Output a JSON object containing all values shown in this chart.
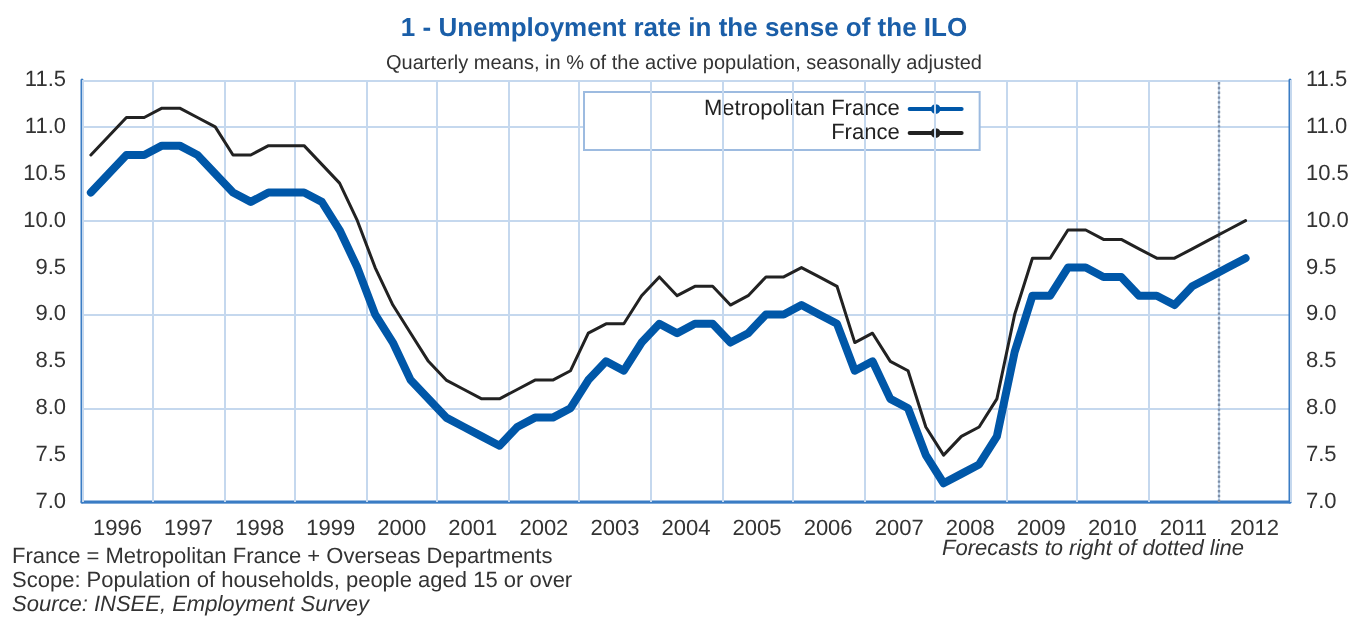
{
  "chart_data": {
    "type": "line",
    "title": "1 - Unemployment rate in the sense of the ILO",
    "subtitle": "Quarterly means, in % of the active population, seasonally adjusted",
    "x": [
      1996.125,
      1996.375,
      1996.625,
      1996.875,
      1997.125,
      1997.375,
      1997.625,
      1997.875,
      1998.125,
      1998.375,
      1998.625,
      1998.875,
      1999.125,
      1999.375,
      1999.625,
      1999.875,
      2000.125,
      2000.375,
      2000.625,
      2000.875,
      2001.125,
      2001.375,
      2001.625,
      2001.875,
      2002.125,
      2002.375,
      2002.625,
      2002.875,
      2003.125,
      2003.375,
      2003.625,
      2003.875,
      2004.125,
      2004.375,
      2004.625,
      2004.875,
      2005.125,
      2005.375,
      2005.625,
      2005.875,
      2006.125,
      2006.375,
      2006.625,
      2006.875,
      2007.125,
      2007.375,
      2007.625,
      2007.875,
      2008.125,
      2008.375,
      2008.625,
      2008.875,
      2009.125,
      2009.375,
      2009.625,
      2009.875,
      2010.125,
      2010.375,
      2010.625,
      2010.875,
      2011.125,
      2011.375,
      2011.625,
      2011.875,
      2012.125,
      2012.375
    ],
    "series": [
      {
        "name": "Metropolitan France",
        "color": "#0057a8",
        "values": [
          10.3,
          10.5,
          10.7,
          10.7,
          10.8,
          10.8,
          10.7,
          10.5,
          10.3,
          10.2,
          10.3,
          10.3,
          10.3,
          10.2,
          9.9,
          9.5,
          9.0,
          8.7,
          8.3,
          8.1,
          7.9,
          7.8,
          7.7,
          7.6,
          7.8,
          7.9,
          7.9,
          8.0,
          8.3,
          8.5,
          8.4,
          8.7,
          8.9,
          8.8,
          8.9,
          8.9,
          8.7,
          8.8,
          9.0,
          9.0,
          9.1,
          9.0,
          8.9,
          8.4,
          8.5,
          8.1,
          8.0,
          7.5,
          7.2,
          7.3,
          7.4,
          7.7,
          8.6,
          9.2,
          9.2,
          9.5,
          9.5,
          9.4,
          9.4,
          9.2,
          9.2,
          9.1,
          9.3,
          9.4,
          9.5,
          9.6
        ]
      },
      {
        "name": "France",
        "color": "#222222",
        "values": [
          10.7,
          10.9,
          11.1,
          11.1,
          11.2,
          11.2,
          11.1,
          11.0,
          10.7,
          10.7,
          10.8,
          10.8,
          10.8,
          10.6,
          10.4,
          10.0,
          9.5,
          9.1,
          8.8,
          8.5,
          8.3,
          8.2,
          8.1,
          8.1,
          8.2,
          8.3,
          8.3,
          8.4,
          8.8,
          8.9,
          8.9,
          9.2,
          9.4,
          9.2,
          9.3,
          9.3,
          9.1,
          9.2,
          9.4,
          9.4,
          9.5,
          9.4,
          9.3,
          8.7,
          8.8,
          8.5,
          8.4,
          7.8,
          7.5,
          7.7,
          7.8,
          8.1,
          9.0,
          9.6,
          9.6,
          9.9,
          9.9,
          9.8,
          9.8,
          9.7,
          9.6,
          9.6,
          9.7,
          9.8,
          9.9,
          10.0
        ]
      }
    ],
    "xlim": [
      1996,
      2013
    ],
    "xticks": [
      {
        "value": 1996,
        "label": null
      },
      {
        "value": 1996.5,
        "label": "1996"
      },
      {
        "value": 1997,
        "label": null
      },
      {
        "value": 1997.5,
        "label": "1997"
      },
      {
        "value": 1998,
        "label": null
      },
      {
        "value": 1998.5,
        "label": "1998"
      },
      {
        "value": 1999,
        "label": null
      },
      {
        "value": 1999.5,
        "label": "1999"
      },
      {
        "value": 2000,
        "label": null
      },
      {
        "value": 2000.5,
        "label": "2000"
      },
      {
        "value": 2001,
        "label": null
      },
      {
        "value": 2001.5,
        "label": "2001"
      },
      {
        "value": 2002,
        "label": null
      },
      {
        "value": 2002.5,
        "label": "2002"
      },
      {
        "value": 2003,
        "label": null
      },
      {
        "value": 2003.5,
        "label": "2003"
      },
      {
        "value": 2004,
        "label": null
      },
      {
        "value": 2004.5,
        "label": "2004"
      },
      {
        "value": 2005,
        "label": null
      },
      {
        "value": 2005.5,
        "label": "2005"
      },
      {
        "value": 2006,
        "label": null
      },
      {
        "value": 2006.5,
        "label": "2006"
      },
      {
        "value": 2007,
        "label": null
      },
      {
        "value": 2007.5,
        "label": "2007"
      },
      {
        "value": 2008,
        "label": null
      },
      {
        "value": 2008.5,
        "label": "2008"
      },
      {
        "value": 2009,
        "label": null
      },
      {
        "value": 2009.5,
        "label": "2009"
      },
      {
        "value": 2010,
        "label": null
      },
      {
        "value": 2010.5,
        "label": "2010"
      },
      {
        "value": 2011,
        "label": null
      },
      {
        "value": 2011.5,
        "label": "2011"
      },
      {
        "value": 2012,
        "label": null
      },
      {
        "value": 2012.5,
        "label": "2012"
      },
      {
        "value": 2013,
        "label": null
      }
    ],
    "ylim": [
      7.0,
      11.5
    ],
    "yticks": [
      {
        "value": 7,
        "label": "7.0"
      },
      {
        "value": 7.5,
        "label": "7.5"
      },
      {
        "value": 8,
        "label": "8.0"
      },
      {
        "value": 8.5,
        "label": "8.5"
      },
      {
        "value": 9,
        "label": "9.0"
      },
      {
        "value": 9.5,
        "label": "9.5"
      },
      {
        "value": 10,
        "label": "10.0"
      },
      {
        "value": 10.5,
        "label": "10.5"
      },
      {
        "value": 11,
        "label": "11.0"
      },
      {
        "value": 11.5,
        "label": "11.5"
      }
    ],
    "y2lim": [
      7.0,
      11.5
    ],
    "y2ticks": [
      {
        "value": 7,
        "label": "7.0"
      },
      {
        "value": 7.5,
        "label": "7.5"
      },
      {
        "value": 8,
        "label": "8.0"
      },
      {
        "value": 8.5,
        "label": "8.5"
      },
      {
        "value": 9,
        "label": "9.0"
      },
      {
        "value": 9.5,
        "label": "9.5"
      },
      {
        "value": 10,
        "label": "10.0"
      },
      {
        "value": 10.5,
        "label": "10.5"
      },
      {
        "value": 11,
        "label": "11.0"
      },
      {
        "value": 11.5,
        "label": "11.5"
      }
    ],
    "ref_lines": [
      {
        "axis": "x",
        "value": 2012,
        "label": "Forecasts to right of dotted line",
        "line_style": "dotted",
        "color": "#7f8fa6"
      }
    ],
    "annotations": [
      "France = Metropolitan France + Overseas Departments",
      "Scope: Population of households, people aged 15 or over",
      "Source: INSEE, Employment Survey"
    ],
    "grid": true,
    "legend": "top",
    "marker": "none",
    "line_style": "solid"
  }
}
